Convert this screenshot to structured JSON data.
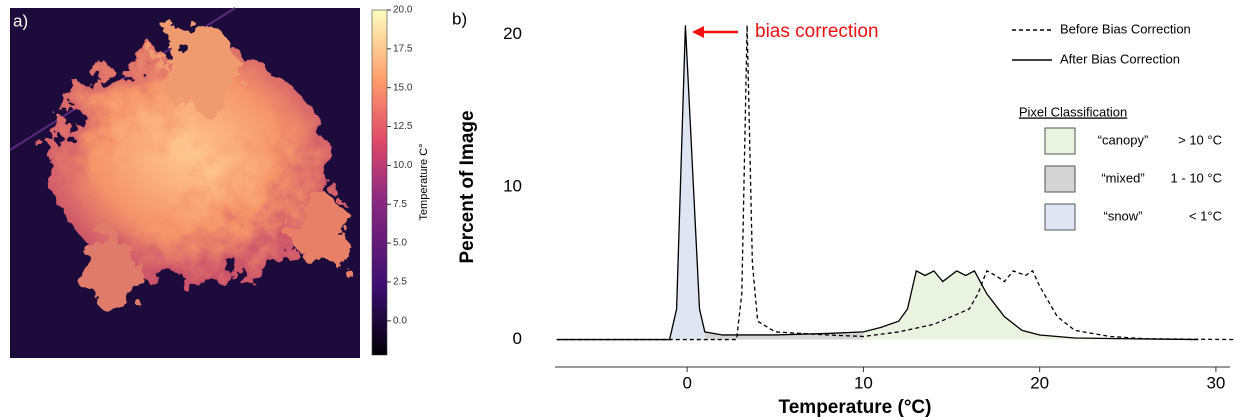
{
  "chart_data": [
    {
      "type": "image",
      "panel_label": "a)",
      "colorbar": {
        "label": "Temperature C°",
        "lim": [
          -2.2,
          20
        ],
        "ticks": [
          {
            "value": 20,
            "label": "20.0"
          },
          {
            "value": 17.5,
            "label": "17.5"
          },
          {
            "value": 15,
            "label": "15.0"
          },
          {
            "value": 12.5,
            "label": "12.5"
          },
          {
            "value": 10,
            "label": "10.0"
          },
          {
            "value": 7.5,
            "label": "7.5"
          },
          {
            "value": 5,
            "label": "5.0"
          },
          {
            "value": 2.5,
            "label": "2.5"
          },
          {
            "value": 0,
            "label": "0.0"
          }
        ]
      }
    },
    {
      "type": "line",
      "panel_label": "b)",
      "xlabel": "Temperature (°C)",
      "ylabel": "Percent of Image",
      "xlim": [
        -7.5,
        30.8
      ],
      "ylim": [
        -1.8,
        21.6
      ],
      "xticks": [
        0,
        10,
        20,
        30
      ],
      "yticks": [
        0,
        10,
        20
      ],
      "series": [
        {
          "name": "Before Bias Correction",
          "color": "#000000",
          "dash": true,
          "x": [
            -7.4,
            2.8,
            3.1,
            3.4,
            3.7,
            4,
            5,
            8,
            10,
            12,
            14,
            15,
            16,
            16.5,
            17,
            17.5,
            18,
            18.5,
            19.2,
            19.6,
            20,
            21,
            22,
            24,
            26,
            31
          ],
          "values": [
            0,
            0,
            3,
            20.6,
            5,
            1.2,
            0.5,
            0.3,
            0.2,
            0.5,
            1,
            1.5,
            2,
            3,
            4.5,
            4.2,
            3.8,
            4.5,
            4.2,
            4.5,
            3.5,
            1.5,
            0.6,
            0.2,
            0.05,
            0
          ]
        },
        {
          "name": "After Bias Correction",
          "color": "#000000",
          "dash": false,
          "x": [
            -7.4,
            -1,
            -0.6,
            -0.1,
            0.7,
            1,
            2,
            5,
            8,
            10,
            11,
            12,
            12.5,
            13,
            13.5,
            14,
            14.5,
            15.3,
            15.8,
            16.3,
            17,
            18,
            19,
            20,
            22,
            25,
            29
          ],
          "values": [
            0,
            0,
            2,
            20.6,
            2,
            0.5,
            0.3,
            0.3,
            0.4,
            0.5,
            0.8,
            1.2,
            2,
            4.5,
            4.2,
            4.5,
            3.8,
            4.5,
            4.2,
            4.5,
            3,
            1.5,
            0.6,
            0.3,
            0.1,
            0.05,
            0
          ]
        }
      ],
      "annotation": {
        "text": "bias correction",
        "color": "#ee1111"
      },
      "classification": {
        "title": "Pixel Classification",
        "classes": [
          {
            "name": "“canopy”",
            "range": "> 10 °C",
            "color": "#eaf3e0",
            "min": 10,
            "max": null
          },
          {
            "name": "“mixed”",
            "range": "1 - 10 °C",
            "color": "#d4d4d4",
            "min": 1,
            "max": 10
          },
          {
            "name": "“snow”",
            "range": "< 1°C",
            "color": "#dfe5f3",
            "min": null,
            "max": 1
          }
        ]
      }
    }
  ]
}
